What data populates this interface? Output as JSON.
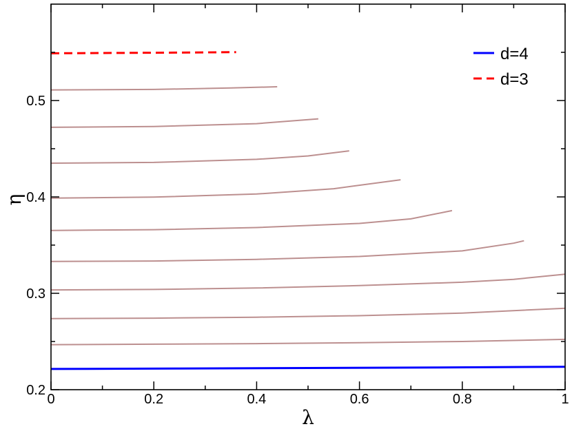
{
  "chart_data": {
    "type": "line",
    "xlabel": "λ",
    "ylabel": "η",
    "xlim": [
      0,
      1
    ],
    "ylim": [
      0.2,
      0.6
    ],
    "x_ticks": [
      0,
      0.2,
      0.4,
      0.6,
      0.8,
      1
    ],
    "x_tick_labels": [
      "0",
      "0.2",
      "0.4",
      "0.6",
      "0.8",
      "1"
    ],
    "y_ticks": [
      0.2,
      0.3,
      0.4,
      0.5
    ],
    "y_tick_labels": [
      "0.2",
      "0.3",
      "0.4",
      "0.5"
    ],
    "grid": false,
    "legend_position": "top-right",
    "series": [
      {
        "name": "d=4",
        "color": "#0000ff",
        "style": "solid",
        "x": [
          0,
          0.25,
          0.5,
          0.75,
          1.0
        ],
        "y": [
          0.2215,
          0.222,
          0.2225,
          0.223,
          0.2238
        ]
      },
      {
        "name": "d=3",
        "color": "#ff0000",
        "style": "dashed",
        "x": [
          0,
          0.1,
          0.2,
          0.3,
          0.36
        ],
        "y": [
          0.549,
          0.5493,
          0.5496,
          0.5499,
          0.5502
        ]
      },
      {
        "color": "#bc8f8f",
        "style": "solid",
        "x": [
          0,
          0.2,
          0.4,
          0.6,
          0.8,
          1.0
        ],
        "y": [
          0.2467,
          0.2472,
          0.2478,
          0.2488,
          0.25,
          0.2522
        ]
      },
      {
        "color": "#bc8f8f",
        "style": "solid",
        "x": [
          0,
          0.2,
          0.4,
          0.6,
          0.8,
          1.0
        ],
        "y": [
          0.2737,
          0.2742,
          0.2752,
          0.2768,
          0.2795,
          0.2845
        ]
      },
      {
        "color": "#bc8f8f",
        "style": "solid",
        "x": [
          0,
          0.2,
          0.4,
          0.6,
          0.8,
          0.9,
          1.0
        ],
        "y": [
          0.3035,
          0.304,
          0.3055,
          0.308,
          0.3115,
          0.3145,
          0.3198
        ]
      },
      {
        "color": "#bc8f8f",
        "style": "solid",
        "x": [
          0,
          0.2,
          0.4,
          0.6,
          0.8,
          0.9,
          0.92
        ],
        "y": [
          0.333,
          0.3335,
          0.3352,
          0.3382,
          0.344,
          0.352,
          0.3545
        ]
      },
      {
        "color": "#bc8f8f",
        "style": "solid",
        "x": [
          0,
          0.2,
          0.4,
          0.6,
          0.7,
          0.78
        ],
        "y": [
          0.3652,
          0.366,
          0.3682,
          0.3725,
          0.3772,
          0.3858
        ]
      },
      {
        "color": "#bc8f8f",
        "style": "solid",
        "x": [
          0,
          0.2,
          0.4,
          0.55,
          0.68
        ],
        "y": [
          0.3988,
          0.3998,
          0.403,
          0.4085,
          0.4178
        ]
      },
      {
        "color": "#bc8f8f",
        "style": "solid",
        "x": [
          0,
          0.2,
          0.4,
          0.5,
          0.58
        ],
        "y": [
          0.435,
          0.4358,
          0.439,
          0.4425,
          0.4478
        ]
      },
      {
        "color": "#bc8f8f",
        "style": "solid",
        "x": [
          0,
          0.2,
          0.4,
          0.52
        ],
        "y": [
          0.4722,
          0.473,
          0.476,
          0.481
        ]
      },
      {
        "color": "#bc8f8f",
        "style": "solid",
        "x": [
          0,
          0.2,
          0.35,
          0.44
        ],
        "y": [
          0.511,
          0.5115,
          0.513,
          0.5143
        ]
      }
    ]
  }
}
